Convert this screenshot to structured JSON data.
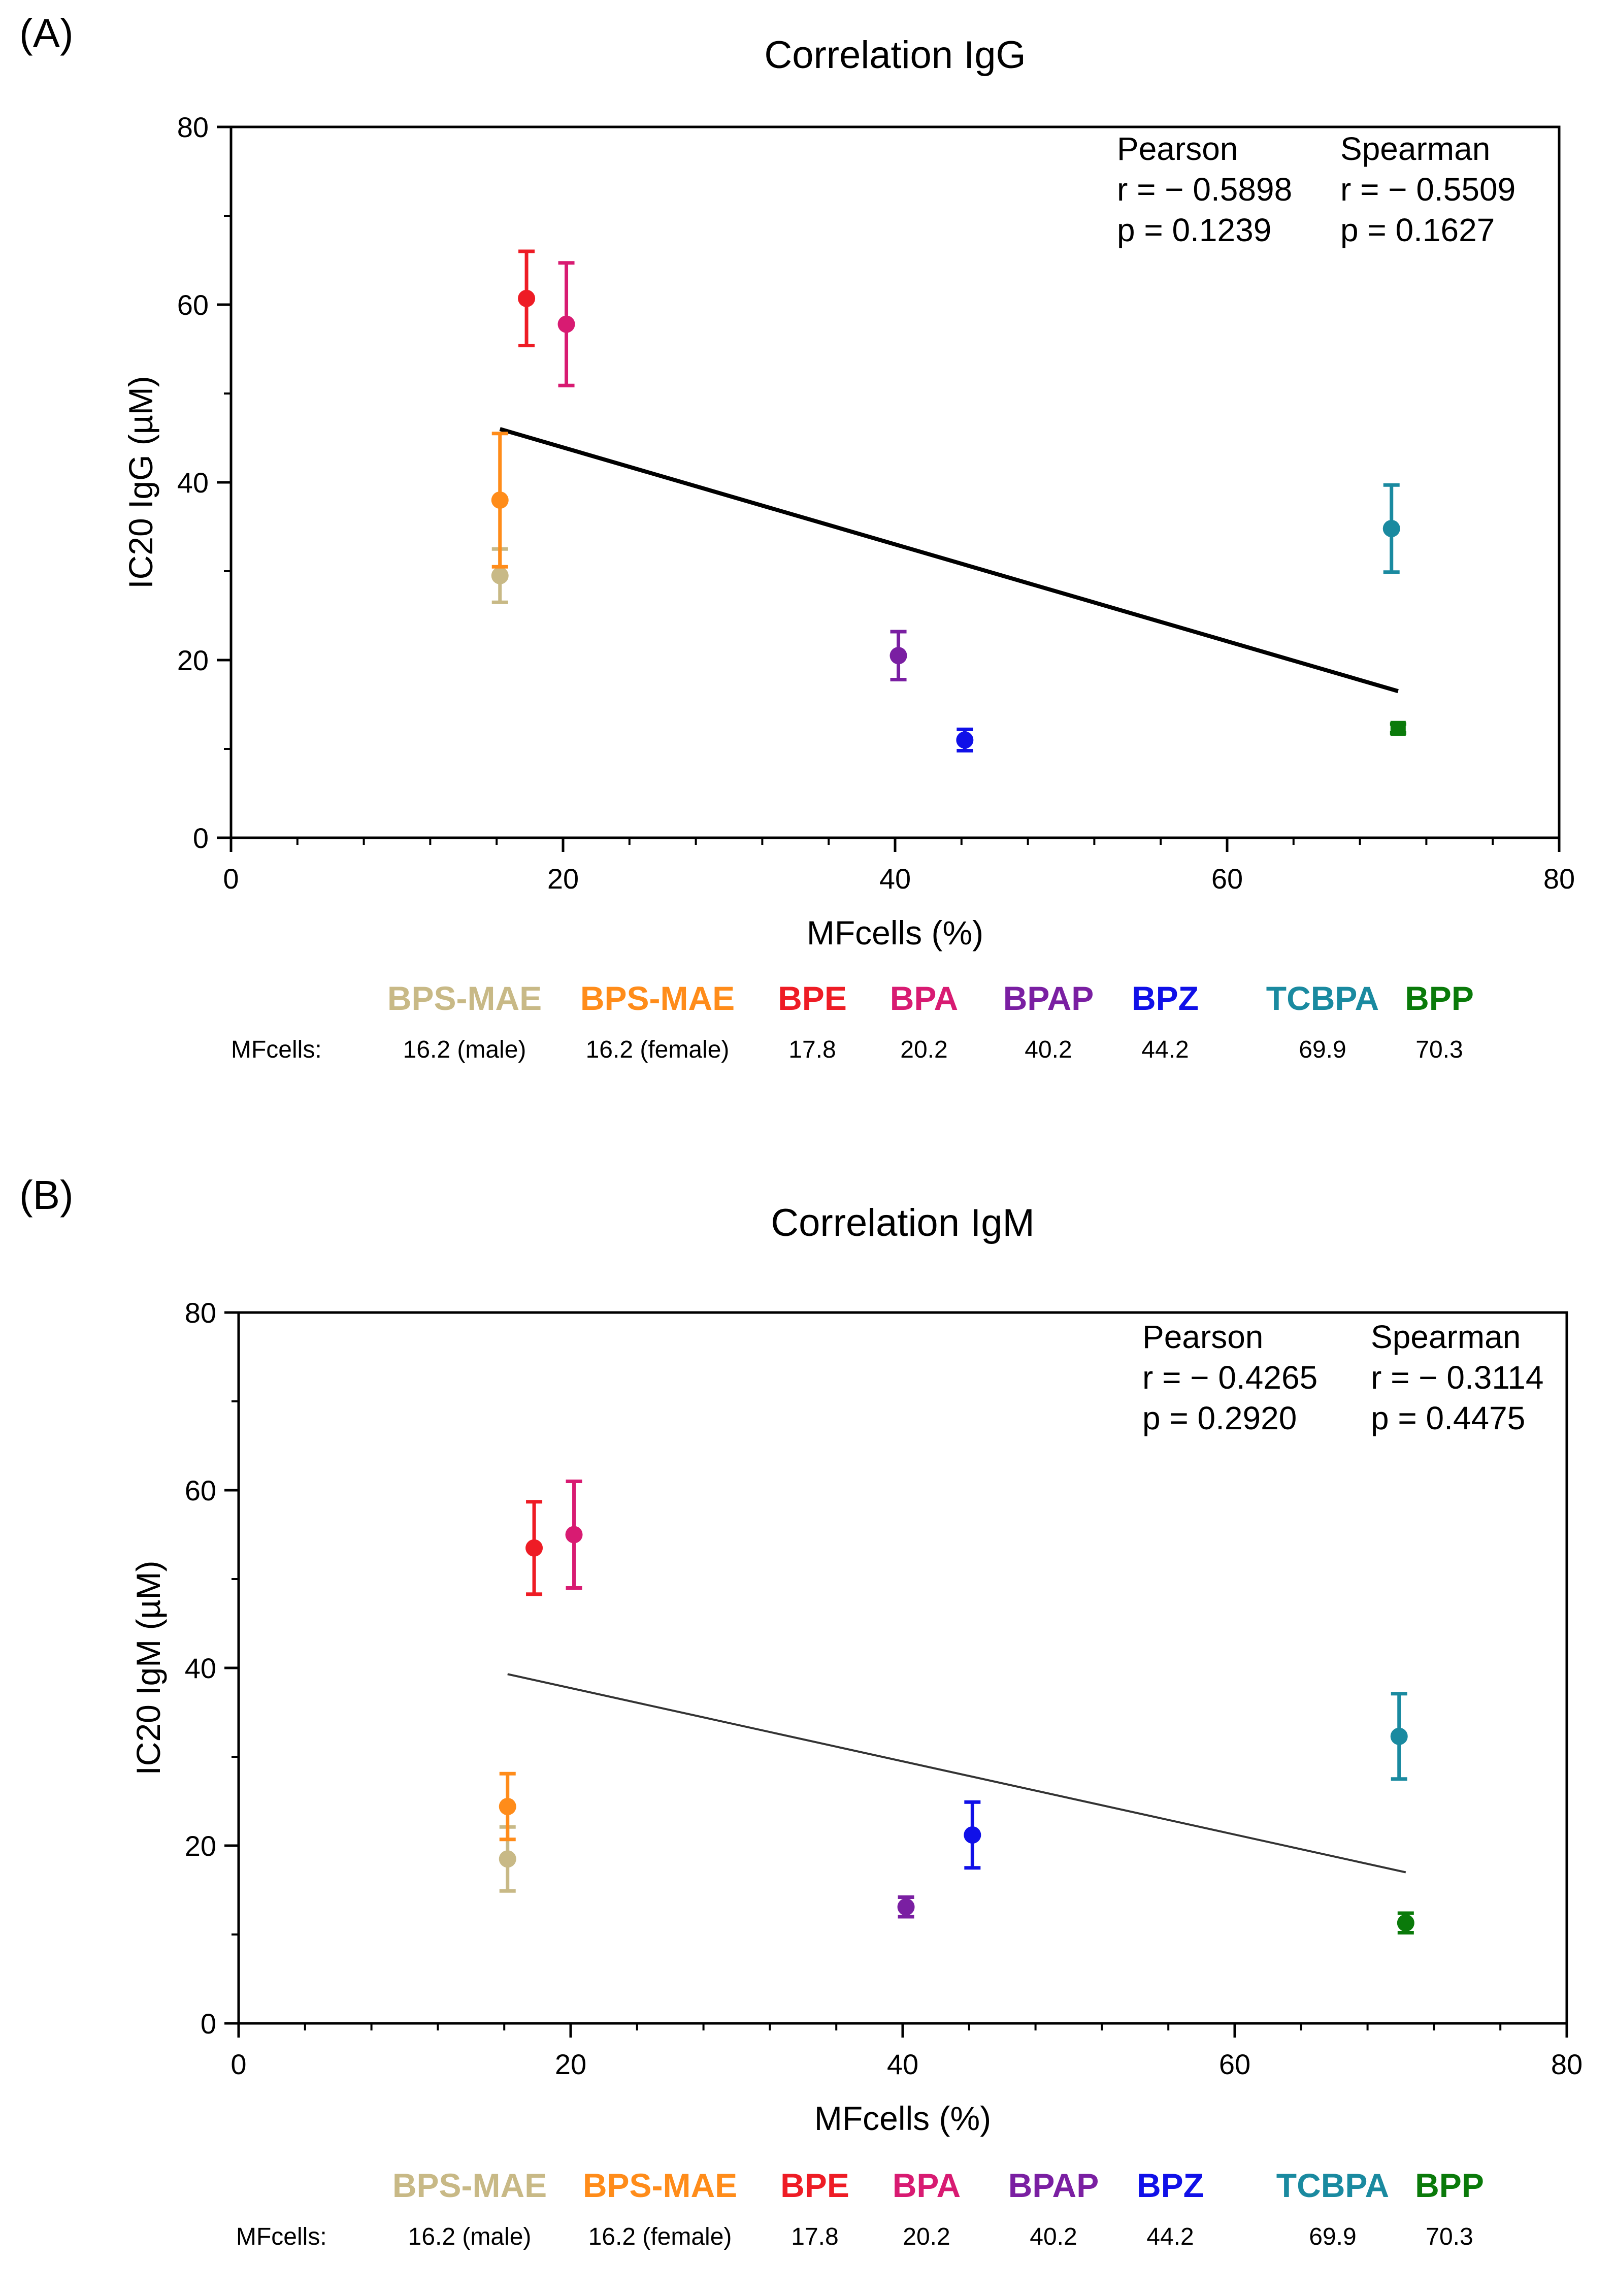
{
  "panels": [
    {
      "label": "(A)",
      "stats": {
        "pearson_header": "Pearson",
        "spearman_header": "Spearman",
        "pearson_r": "r = − 0.5898",
        "spearman_r": "r = − 0.5509",
        "pearson_p": "p = 0.1239",
        "spearman_p": "p = 0.1627"
      },
      "legend": {
        "mf_label": "MFcells:",
        "items": [
          {
            "name": "BPS-MAE",
            "mf": "16.2 (male)",
            "color": "#c8b986"
          },
          {
            "name": "BPS-MAE",
            "mf": "16.2 (female)",
            "color": "#ff8c1a"
          },
          {
            "name": "BPE",
            "mf": "17.8",
            "color": "#ee1c25"
          },
          {
            "name": "BPA",
            "mf": "20.2",
            "color": "#d81b72"
          },
          {
            "name": "BPAP",
            "mf": "40.2",
            "color": "#7a1fa2"
          },
          {
            "name": "BPZ",
            "mf": "44.2",
            "color": "#1010e8"
          },
          {
            "name": "TCBPA",
            "mf": "69.9",
            "color": "#1a8aa0"
          },
          {
            "name": "BPP",
            "mf": "70.3",
            "color": "#0a7a0a"
          }
        ]
      }
    },
    {
      "label": "(B)",
      "stats": {
        "pearson_header": "Pearson",
        "spearman_header": "Spearman",
        "pearson_r": "r = − 0.4265",
        "spearman_r": "r = − 0.3114",
        "pearson_p": "p = 0.2920",
        "spearman_p": "p = 0.4475"
      },
      "legend": {
        "mf_label": "MFcells:",
        "items": [
          {
            "name": "BPS-MAE",
            "mf": "16.2 (male)",
            "color": "#c8b986"
          },
          {
            "name": "BPS-MAE",
            "mf": "16.2 (female)",
            "color": "#ff8c1a"
          },
          {
            "name": "BPE",
            "mf": "17.8",
            "color": "#ee1c25"
          },
          {
            "name": "BPA",
            "mf": "20.2",
            "color": "#d81b72"
          },
          {
            "name": "BPAP",
            "mf": "40.2",
            "color": "#7a1fa2"
          },
          {
            "name": "BPZ",
            "mf": "44.2",
            "color": "#1010e8"
          },
          {
            "name": "TCBPA",
            "mf": "69.9",
            "color": "#1a8aa0"
          },
          {
            "name": "BPP",
            "mf": "70.3",
            "color": "#0a7a0a"
          }
        ]
      }
    }
  ],
  "chart_data": [
    {
      "type": "scatter",
      "title": "Correlation IgG",
      "xlabel": "MFcells (%)",
      "ylabel": "IC20 IgG (µM)",
      "xlim": [
        0,
        80
      ],
      "ylim": [
        0,
        80
      ],
      "x_ticks": [
        0,
        20,
        40,
        60,
        80
      ],
      "y_ticks": [
        0,
        20,
        40,
        60,
        80
      ],
      "x_tick_labels": [
        "0",
        "20",
        "40",
        "60",
        "80"
      ],
      "y_tick_labels": [
        "0",
        "20",
        "40",
        "60",
        "80"
      ],
      "grid": false,
      "points": [
        {
          "name": "BPS-MAE (male)",
          "x": 16.2,
          "y": 29.5,
          "err": 3.0,
          "color": "#c8b986",
          "marker": "circle"
        },
        {
          "name": "BPS-MAE (female)",
          "x": 16.2,
          "y": 38.0,
          "err": 7.5,
          "color": "#ff8c1a",
          "marker": "circle"
        },
        {
          "name": "BPE",
          "x": 17.8,
          "y": 60.7,
          "err": 5.3,
          "color": "#ee1c25",
          "marker": "circle"
        },
        {
          "name": "BPA",
          "x": 20.2,
          "y": 57.8,
          "err": 6.9,
          "color": "#d81b72",
          "marker": "circle"
        },
        {
          "name": "BPAP",
          "x": 40.2,
          "y": 20.5,
          "err": 2.7,
          "color": "#7a1fa2",
          "marker": "circle"
        },
        {
          "name": "BPZ",
          "x": 44.2,
          "y": 11.0,
          "err": 1.2,
          "color": "#1010e8",
          "marker": "circle"
        },
        {
          "name": "TCBPA",
          "x": 69.9,
          "y": 34.8,
          "err": 4.9,
          "color": "#1a8aa0",
          "marker": "circle"
        },
        {
          "name": "BPP",
          "x": 70.3,
          "y": 12.3,
          "err": 0.5,
          "color": "#0a7a0a",
          "marker": "square"
        }
      ],
      "regression": {
        "x": [
          16.2,
          70.3
        ],
        "y": [
          46.0,
          16.5
        ],
        "color": "#000000",
        "width": "thick"
      }
    },
    {
      "type": "scatter",
      "title": "Correlation IgM",
      "xlabel": "MFcells (%)",
      "ylabel": "IC20 IgM (µM)",
      "xlim": [
        0,
        80
      ],
      "ylim": [
        0,
        80
      ],
      "x_ticks": [
        0,
        20,
        40,
        60,
        80
      ],
      "y_ticks": [
        0,
        20,
        40,
        60,
        80
      ],
      "x_tick_labels": [
        "0",
        "20",
        "40",
        "60",
        "80"
      ],
      "y_tick_labels": [
        "0",
        "20",
        "40",
        "60",
        "80"
      ],
      "grid": false,
      "points": [
        {
          "name": "BPS-MAE (male)",
          "x": 16.2,
          "y": 18.5,
          "err": 3.6,
          "color": "#c8b986",
          "marker": "circle"
        },
        {
          "name": "BPS-MAE (female)",
          "x": 16.2,
          "y": 24.4,
          "err": 3.7,
          "color": "#ff8c1a",
          "marker": "circle"
        },
        {
          "name": "BPE",
          "x": 17.8,
          "y": 53.5,
          "err": 5.2,
          "color": "#ee1c25",
          "marker": "circle"
        },
        {
          "name": "BPA",
          "x": 20.2,
          "y": 55.0,
          "err": 6.0,
          "color": "#d81b72",
          "marker": "circle"
        },
        {
          "name": "BPAP",
          "x": 40.2,
          "y": 13.1,
          "err": 1.1,
          "color": "#7a1fa2",
          "marker": "circle"
        },
        {
          "name": "BPZ",
          "x": 44.2,
          "y": 21.2,
          "err": 3.7,
          "color": "#1010e8",
          "marker": "circle"
        },
        {
          "name": "TCBPA",
          "x": 69.9,
          "y": 32.3,
          "err": 4.8,
          "color": "#1a8aa0",
          "marker": "circle"
        },
        {
          "name": "BPP",
          "x": 70.3,
          "y": 11.3,
          "err": 1.1,
          "color": "#0a7a0a",
          "marker": "circle"
        }
      ],
      "regression": {
        "x": [
          16.2,
          70.3
        ],
        "y": [
          39.3,
          17.0
        ],
        "color": "#333333",
        "width": "thin"
      }
    }
  ]
}
